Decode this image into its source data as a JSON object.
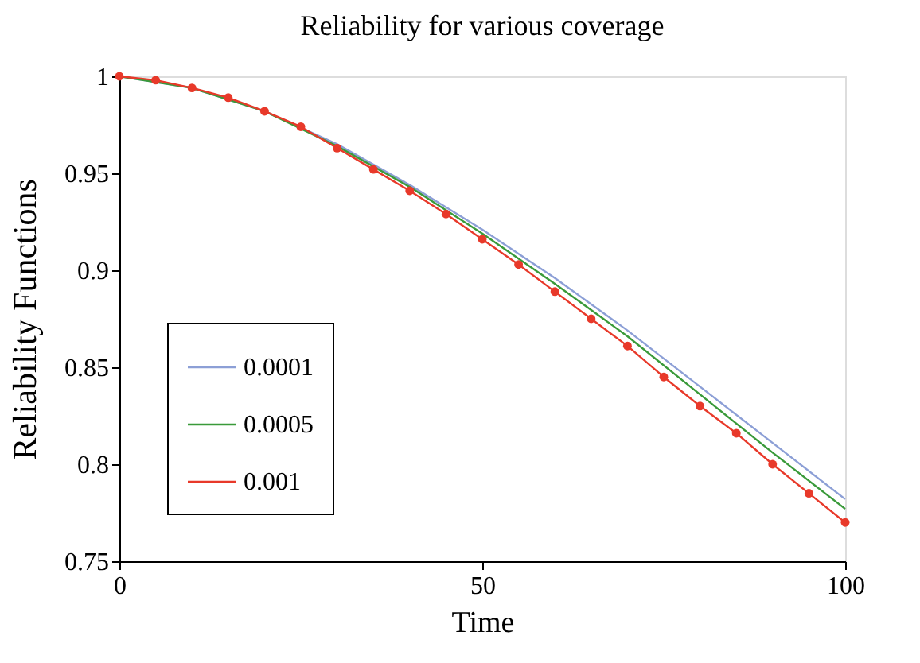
{
  "chart_data": {
    "type": "line",
    "title": "Reliability for various coverage",
    "xlabel": "Time",
    "ylabel": "Reliability Functions",
    "xlim": [
      0,
      100
    ],
    "xticks": [
      0,
      50,
      100
    ],
    "ylim": [
      0.75,
      1
    ],
    "yticks": [
      0.75,
      0.8,
      0.85,
      0.9,
      0.95,
      1
    ],
    "grid": false,
    "legend": "bottom left",
    "line_style": "solid",
    "series": [
      {
        "name": "0.0001",
        "color": "#8c9fd6",
        "marker": "none",
        "x": [
          0,
          10,
          20,
          30,
          40,
          50,
          60,
          70,
          80,
          90,
          100
        ],
        "values": [
          1,
          0.994,
          0.982,
          0.965,
          0.944,
          0.921,
          0.896,
          0.869,
          0.84,
          0.811,
          0.782
        ]
      },
      {
        "name": "0.0005",
        "color": "#3a9a3a",
        "marker": "none",
        "x": [
          0,
          10,
          20,
          30,
          40,
          50,
          60,
          70,
          80,
          90,
          100
        ],
        "values": [
          1,
          0.994,
          0.982,
          0.964,
          0.943,
          0.919,
          0.893,
          0.866,
          0.836,
          0.806,
          0.777
        ]
      },
      {
        "name": "0.001",
        "color": "#e8392a",
        "marker": "circle",
        "x": [
          0,
          5,
          10,
          15,
          20,
          25,
          30,
          35,
          40,
          45,
          50,
          55,
          60,
          65,
          70,
          75,
          80,
          85,
          90,
          95,
          100
        ],
        "values": [
          1,
          0.998,
          0.994,
          0.989,
          0.982,
          0.974,
          0.963,
          0.952,
          0.941,
          0.929,
          0.916,
          0.903,
          0.889,
          0.875,
          0.861,
          0.845,
          0.83,
          0.816,
          0.8,
          0.785,
          0.77
        ]
      }
    ]
  }
}
